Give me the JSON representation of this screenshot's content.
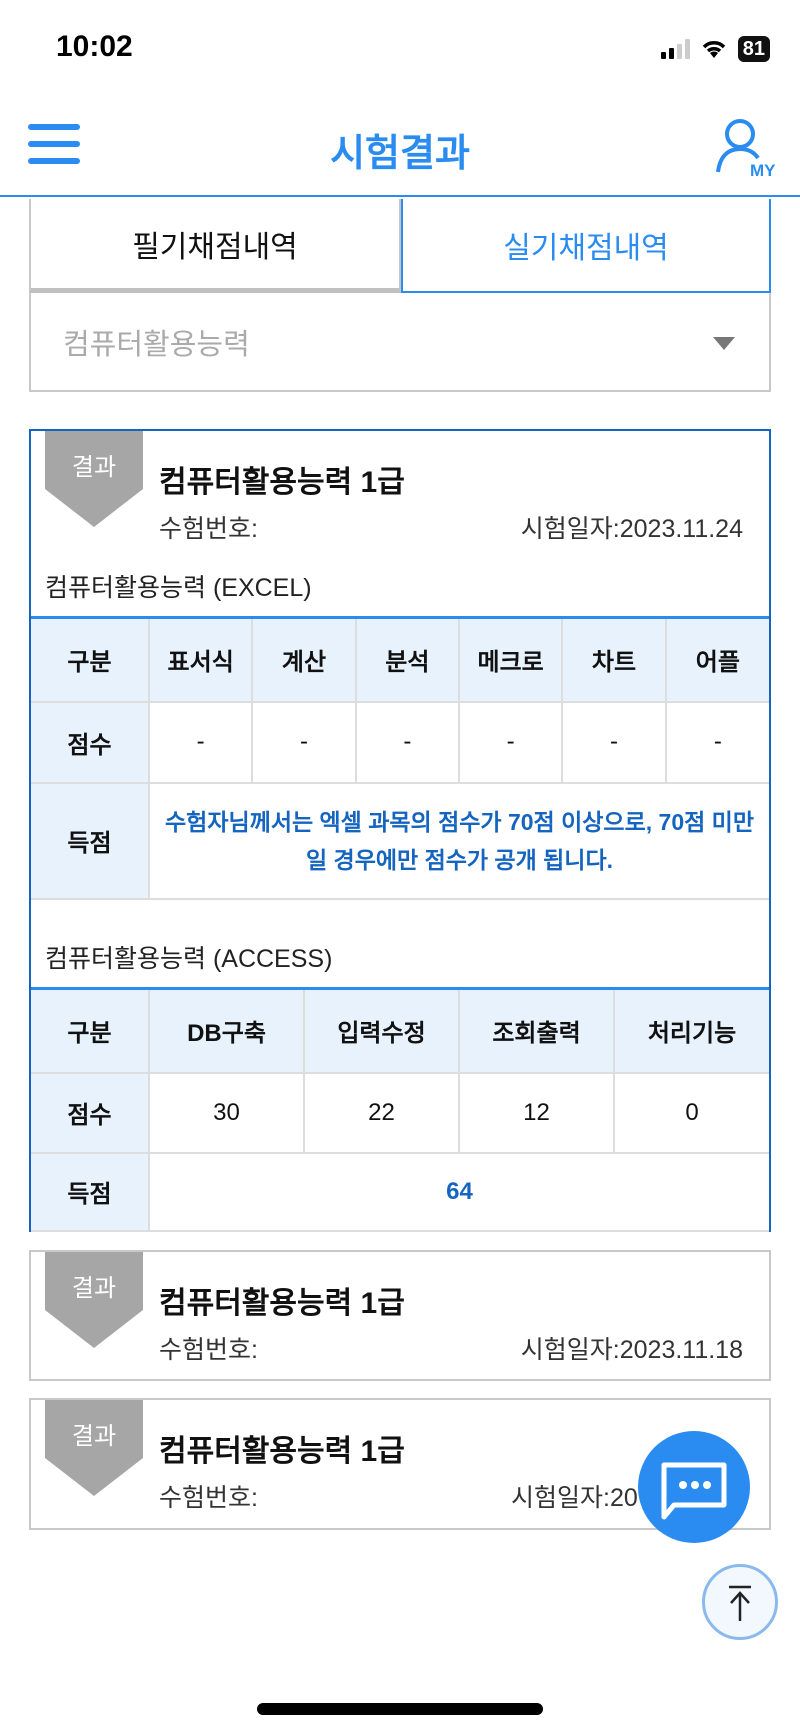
{
  "status_bar": {
    "time": "10:02",
    "battery": "81"
  },
  "header": {
    "title": "시험결과",
    "my_label": "MY"
  },
  "tabs": [
    {
      "label": "필기채점내역",
      "active": false
    },
    {
      "label": "실기채점내역",
      "active": true
    }
  ],
  "select": {
    "value": "컴퓨터활용능력"
  },
  "badge_label": "결과",
  "cards": [
    {
      "title": "컴퓨터활용능력 1급",
      "exam_no_label": "수험번호:",
      "date_label": "시험일자:2023.11.24",
      "excel": {
        "label": "컴퓨터활용능력 (EXCEL)",
        "headers": [
          "구분",
          "표서식",
          "계산",
          "분석",
          "메크로",
          "차트",
          "어플"
        ],
        "score_row": [
          "점수",
          "-",
          "-",
          "-",
          "-",
          "-",
          "-"
        ],
        "total_label": "득점",
        "notice": "수험자님께서는 엑셀 과목의 점수가 70점 이상으로, 70점 미만일 경우에만 점수가 공개 됩니다."
      },
      "access": {
        "label": "컴퓨터활용능력 (ACCESS)",
        "headers": [
          "구분",
          "DB구축",
          "입력수정",
          "조회출력",
          "처리기능"
        ],
        "score_row": [
          "점수",
          "30",
          "22",
          "12",
          "0"
        ],
        "total_label": "득점",
        "total": "64"
      }
    },
    {
      "title": "컴퓨터활용능력 1급",
      "exam_no_label": "수험번호:",
      "date_label": "시험일자:2023.11.18"
    },
    {
      "title": "컴퓨터활용능력 1급",
      "exam_no_label": "수험번호:",
      "date_label": "시험일자:20"
    }
  ],
  "colors": {
    "accent": "#2a8cf0",
    "notice": "#1565c0",
    "table_header_bg": "#e8f2fd",
    "badge": "#a6a6a6"
  }
}
